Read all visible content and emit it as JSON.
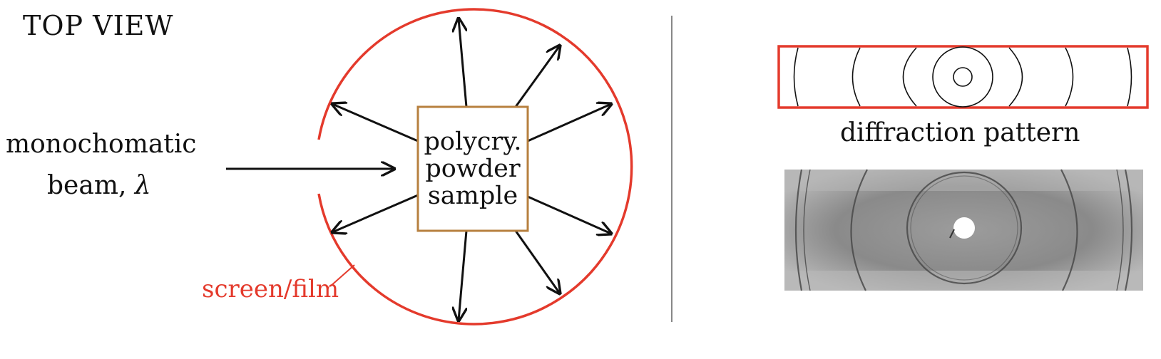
{
  "title": "TOP VIEW",
  "beam": {
    "line1": "monochomatic",
    "line2_word": "beam,",
    "line2_symbol": "λ"
  },
  "sample": {
    "lines": [
      "polycry.",
      "powder",
      "sample"
    ]
  },
  "screen_label": "screen/film",
  "pattern_label": "diffraction pattern",
  "colors": {
    "screen": "#e43a2c",
    "sample_box": "#b7803f",
    "arrows": "#111111",
    "divider": "#888888"
  },
  "photo": {
    "description_icon": "xray-film-photo-icon"
  }
}
